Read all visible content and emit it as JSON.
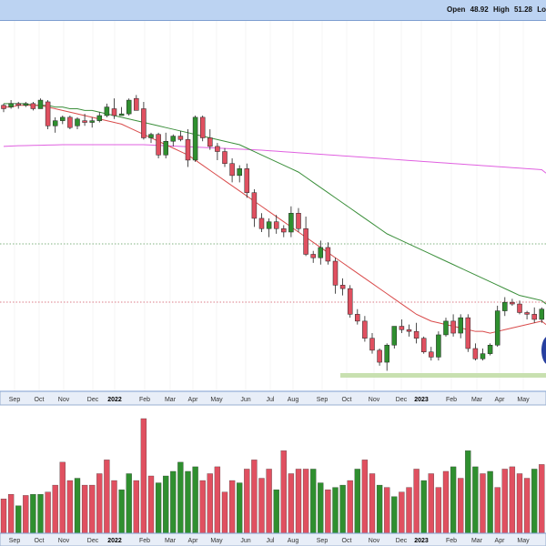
{
  "header": {
    "open_label": "Open",
    "open_value": "48.92",
    "high_label": "High",
    "high_value": "51.28",
    "low_label_partial": "Lo"
  },
  "colors": {
    "up": "#2f8f2f",
    "down": "#e05060",
    "ma_short": "#d94b4b",
    "ma_mid": "#3b8f3b",
    "ma_long": "#e060e0",
    "support_band": "#c8e0b0",
    "blue_marker": "#2840a0"
  },
  "chart_data": {
    "type": "candlestick",
    "x_axis_labels": [
      "Sep",
      "Oct",
      "Nov",
      "Dec",
      "2022",
      "Feb",
      "Mar",
      "Apr",
      "May",
      "Jun",
      "Jul",
      "Aug",
      "Sep",
      "Oct",
      "Nov",
      "Dec",
      "2023",
      "Feb",
      "Mar",
      "Apr",
      "May"
    ],
    "price_ylim": [
      0,
      100
    ],
    "volume_ylim": [
      0,
      100
    ],
    "grid": false,
    "candles": [
      [
        69,
        70,
        65,
        67
      ],
      [
        68,
        72,
        67,
        70
      ],
      [
        70,
        71,
        67,
        69
      ],
      [
        69,
        71,
        68,
        70
      ],
      [
        70,
        71,
        66,
        67
      ],
      [
        67,
        73,
        67,
        72
      ],
      [
        71,
        72,
        55,
        57
      ],
      [
        57,
        62,
        53,
        60
      ],
      [
        60,
        63,
        58,
        62
      ],
      [
        62,
        63,
        55,
        56
      ],
      [
        57,
        62,
        55,
        61
      ],
      [
        60,
        64,
        57,
        59
      ],
      [
        59,
        62,
        56,
        60
      ],
      [
        60,
        65,
        59,
        63
      ],
      [
        63,
        70,
        62,
        68
      ],
      [
        67,
        73,
        61,
        63
      ],
      [
        63,
        68,
        63,
        64
      ],
      [
        64,
        73,
        63,
        72
      ],
      [
        73,
        75,
        66,
        66
      ],
      [
        67,
        71,
        49,
        50
      ],
      [
        50,
        53,
        47,
        52
      ],
      [
        52,
        53,
        38,
        40
      ],
      [
        40,
        53,
        38,
        48
      ],
      [
        48,
        52,
        45,
        51
      ],
      [
        51,
        54,
        48,
        49
      ],
      [
        49,
        55,
        33,
        37
      ],
      [
        37,
        63,
        36,
        62
      ],
      [
        62,
        63,
        48,
        50
      ],
      [
        50,
        55,
        43,
        45
      ],
      [
        45,
        47,
        37,
        42
      ],
      [
        42,
        44,
        33,
        35
      ],
      [
        35,
        38,
        24,
        28
      ],
      [
        28,
        34,
        24,
        32
      ],
      [
        32,
        35,
        15,
        18
      ],
      [
        18,
        20,
        -2,
        3
      ],
      [
        3,
        6,
        -5,
        -3
      ],
      [
        -3,
        3,
        -8,
        1
      ],
      [
        1,
        5,
        -6,
        -3
      ],
      [
        -3,
        -1,
        -8,
        -5
      ],
      [
        -5,
        10,
        -8,
        6
      ],
      [
        6,
        9,
        -5,
        -3
      ],
      [
        -3,
        4,
        -19,
        -18
      ],
      [
        -18,
        -16,
        -23,
        -20
      ],
      [
        -20,
        -10,
        -24,
        -14
      ],
      [
        -14,
        -11,
        -24,
        -22
      ],
      [
        -22,
        -20,
        -41,
        -36
      ],
      [
        -36,
        -32,
        -42,
        -38
      ],
      [
        -38,
        -36,
        -55,
        -53
      ],
      [
        -53,
        -50,
        -59,
        -57
      ],
      [
        -57,
        -54,
        -69,
        -67
      ],
      [
        -67,
        -64,
        -76,
        -74
      ],
      [
        -74,
        -73,
        -83,
        -81
      ],
      [
        -81,
        -70,
        -86,
        -71
      ],
      [
        -71,
        -60,
        -73,
        -60
      ],
      [
        -60,
        -56,
        -64,
        -62
      ],
      [
        -62,
        -59,
        -66,
        -63
      ],
      [
        -63,
        -58,
        -70,
        -67
      ],
      [
        -67,
        -66,
        -76,
        -75
      ],
      [
        -75,
        -72,
        -80,
        -78
      ],
      [
        -78,
        -63,
        -80,
        -65
      ],
      [
        -65,
        -55,
        -66,
        -57
      ],
      [
        -57,
        -53,
        -66,
        -64
      ],
      [
        -64,
        -53,
        -67,
        -55
      ],
      [
        -55,
        -53,
        -75,
        -73
      ],
      [
        -73,
        -70,
        -80,
        -79
      ],
      [
        -79,
        -73,
        -80,
        -76
      ],
      [
        -76,
        -70,
        -77,
        -71
      ],
      [
        -71,
        -48,
        -72,
        -51
      ],
      [
        -51,
        -43,
        -54,
        -46
      ],
      [
        -46,
        -44,
        -48,
        -47
      ],
      [
        -47,
        -45,
        -53,
        -52
      ],
      [
        -52,
        -51,
        -56,
        -53
      ],
      [
        -53,
        -49,
        -58,
        -56
      ],
      [
        -56,
        -49,
        -58,
        -50
      ]
    ],
    "ma_short": [
      68,
      68,
      69,
      69,
      69,
      69,
      68,
      67,
      66,
      65,
      64,
      63,
      62,
      61,
      60,
      59,
      58,
      56,
      54,
      52,
      50,
      48,
      46,
      44,
      42,
      40,
      37,
      34,
      31,
      28,
      25,
      22,
      19,
      16,
      13,
      10,
      7,
      4,
      1,
      -2,
      -5,
      -8,
      -11,
      -14,
      -17,
      -20,
      -23,
      -26,
      -29,
      -32,
      -35,
      -38,
      -41,
      -44,
      -47,
      -50,
      -53,
      -55,
      -57,
      -58,
      -59,
      -60,
      -61,
      -62,
      -63,
      -63,
      -64,
      -63,
      -62,
      -61,
      -60,
      -59,
      -58,
      -57
    ],
    "ma_mid": [
      70,
      70,
      70,
      70,
      69,
      69,
      69,
      68,
      68,
      67,
      67,
      66,
      66,
      65,
      64,
      63,
      62,
      61,
      60,
      59,
      58,
      57,
      56,
      55,
      54,
      53,
      52,
      51,
      50,
      49,
      48,
      47,
      46,
      44,
      42,
      40,
      38,
      36,
      34,
      32,
      30,
      27,
      24,
      21,
      18,
      15,
      12,
      9,
      6,
      3,
      0,
      -3,
      -6,
      -8,
      -10,
      -12,
      -14,
      -16,
      -18,
      -20,
      -22,
      -24,
      -26,
      -28,
      -30,
      -32,
      -34,
      -36,
      -38,
      -40,
      -42,
      -43,
      -44,
      -45
    ],
    "ma_long": [
      45,
      45.2,
      45.4,
      45.5,
      45.6,
      45.7,
      45.8,
      45.9,
      46,
      46,
      46,
      46,
      46,
      46,
      46,
      46,
      46,
      46,
      46,
      46,
      45.8,
      45.6,
      45.4,
      45.2,
      45,
      44.8,
      44.6,
      44.4,
      44.2,
      44,
      43.8,
      43.6,
      43.4,
      43.2,
      43,
      42.8,
      42.5,
      42.2,
      41.9,
      41.6,
      41.3,
      41,
      40.7,
      40.4,
      40.1,
      39.8,
      39.5,
      39.2,
      38.9,
      38.6,
      38.3,
      38,
      37.7,
      37.4,
      37.1,
      36.8,
      36.5,
      36.2,
      35.9,
      35.6,
      35.3,
      35,
      34.7,
      34.4,
      34.1,
      33.8,
      33.5,
      33.2,
      32.9,
      32.6,
      32.3,
      32,
      31.7,
      31.4
    ],
    "horizontal_levels": [
      62,
      36
    ],
    "support_level": 10,
    "volume": [
      [
        30,
        "down"
      ],
      [
        34,
        "down"
      ],
      [
        24,
        "up"
      ],
      [
        33,
        "down"
      ],
      [
        34,
        "up"
      ],
      [
        34,
        "up"
      ],
      [
        36,
        "down"
      ],
      [
        42,
        "down"
      ],
      [
        62,
        "down"
      ],
      [
        46,
        "down"
      ],
      [
        48,
        "up"
      ],
      [
        42,
        "down"
      ],
      [
        42,
        "down"
      ],
      [
        52,
        "down"
      ],
      [
        64,
        "down"
      ],
      [
        46,
        "down"
      ],
      [
        38,
        "up"
      ],
      [
        52,
        "up"
      ],
      [
        46,
        "down"
      ],
      [
        100,
        "down"
      ],
      [
        50,
        "down"
      ],
      [
        44,
        "up"
      ],
      [
        50,
        "up"
      ],
      [
        54,
        "up"
      ],
      [
        62,
        "up"
      ],
      [
        54,
        "up"
      ],
      [
        58,
        "up"
      ],
      [
        46,
        "down"
      ],
      [
        52,
        "down"
      ],
      [
        58,
        "down"
      ],
      [
        36,
        "down"
      ],
      [
        46,
        "down"
      ],
      [
        44,
        "up"
      ],
      [
        56,
        "down"
      ],
      [
        64,
        "down"
      ],
      [
        48,
        "down"
      ],
      [
        56,
        "down"
      ],
      [
        38,
        "up"
      ],
      [
        72,
        "down"
      ],
      [
        52,
        "down"
      ],
      [
        56,
        "down"
      ],
      [
        56,
        "down"
      ],
      [
        56,
        "up"
      ],
      [
        44,
        "up"
      ],
      [
        38,
        "down"
      ],
      [
        40,
        "up"
      ],
      [
        42,
        "up"
      ],
      [
        46,
        "down"
      ],
      [
        56,
        "up"
      ],
      [
        64,
        "down"
      ],
      [
        52,
        "down"
      ],
      [
        42,
        "up"
      ],
      [
        40,
        "down"
      ],
      [
        32,
        "up"
      ],
      [
        36,
        "down"
      ],
      [
        40,
        "down"
      ],
      [
        56,
        "down"
      ],
      [
        46,
        "up"
      ],
      [
        52,
        "down"
      ],
      [
        40,
        "down"
      ],
      [
        54,
        "down"
      ],
      [
        58,
        "up"
      ],
      [
        48,
        "down"
      ],
      [
        72,
        "up"
      ],
      [
        58,
        "up"
      ],
      [
        52,
        "down"
      ],
      [
        54,
        "up"
      ],
      [
        40,
        "down"
      ],
      [
        56,
        "down"
      ],
      [
        58,
        "down"
      ],
      [
        52,
        "down"
      ],
      [
        48,
        "down"
      ],
      [
        56,
        "up"
      ],
      [
        60,
        "down"
      ]
    ]
  }
}
